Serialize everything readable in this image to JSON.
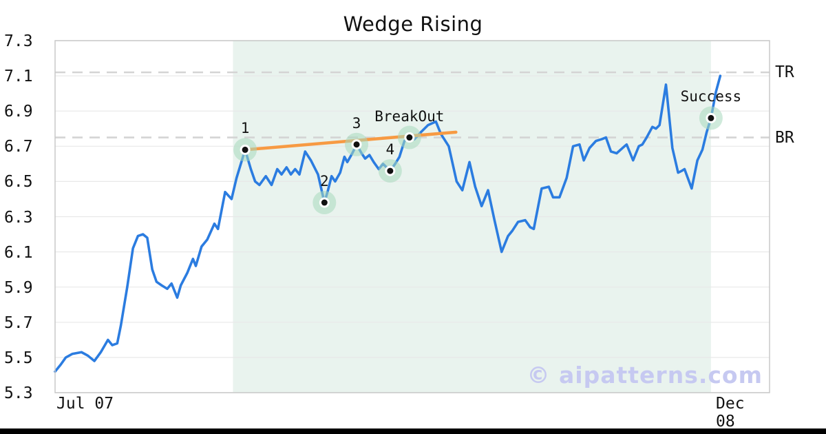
{
  "watermark": "© aipatterns.com",
  "colors": {
    "price_line": "#2b7ce0",
    "trend_line": "#f79a43",
    "pattern_zone": "#e9f3ee",
    "marker_halo": "#a8d8bd",
    "marker_dot": "#111111",
    "dashed_level": "#d4d4d4",
    "grid_line": "#e8e8e8",
    "frame": "#c8c8c8",
    "watermark_color": "#c6c9f1",
    "bottom_bar": "#000000"
  },
  "chart_data": {
    "type": "line",
    "title": "Wedge Rising",
    "x_tick_labels": [
      "Jul 07",
      "Dec 08"
    ],
    "ylim": [
      5.3,
      7.3
    ],
    "y_ticks": [
      7.3,
      7.1,
      6.9,
      6.7,
      6.5,
      6.3,
      6.1,
      5.9,
      5.7,
      5.5,
      5.3
    ],
    "grid": "horizontal",
    "legend": "none",
    "levels": [
      {
        "label": "TR",
        "value": 7.12
      },
      {
        "label": "BR",
        "value": 6.75
      }
    ],
    "pattern_zone": {
      "x_start": 0.249,
      "x_end": 0.918
    },
    "trendline": {
      "x1": 0.266,
      "y1": 6.68,
      "x2": 0.561,
      "y2": 6.78
    },
    "annotations": [
      {
        "label": "1",
        "x": 0.266,
        "y": 6.68
      },
      {
        "label": "2",
        "x": 0.377,
        "y": 6.38
      },
      {
        "label": "3",
        "x": 0.422,
        "y": 6.71
      },
      {
        "label": "4",
        "x": 0.469,
        "y": 6.56
      },
      {
        "label": "BreakOut",
        "x": 0.496,
        "y": 6.75
      },
      {
        "label": "Success",
        "x": 0.918,
        "y": 6.86
      }
    ],
    "series": [
      {
        "name": "price",
        "points": [
          [
            0.0,
            5.42
          ],
          [
            0.008,
            5.46
          ],
          [
            0.015,
            5.5
          ],
          [
            0.024,
            5.52
          ],
          [
            0.037,
            5.53
          ],
          [
            0.046,
            5.51
          ],
          [
            0.055,
            5.48
          ],
          [
            0.064,
            5.53
          ],
          [
            0.074,
            5.6
          ],
          [
            0.08,
            5.57
          ],
          [
            0.087,
            5.58
          ],
          [
            0.092,
            5.68
          ],
          [
            0.101,
            5.9
          ],
          [
            0.109,
            6.12
          ],
          [
            0.116,
            6.19
          ],
          [
            0.123,
            6.2
          ],
          [
            0.129,
            6.18
          ],
          [
            0.136,
            6.0
          ],
          [
            0.142,
            5.93
          ],
          [
            0.149,
            5.91
          ],
          [
            0.157,
            5.89
          ],
          [
            0.163,
            5.92
          ],
          [
            0.171,
            5.84
          ],
          [
            0.176,
            5.91
          ],
          [
            0.185,
            5.98
          ],
          [
            0.193,
            6.06
          ],
          [
            0.197,
            6.02
          ],
          [
            0.205,
            6.13
          ],
          [
            0.213,
            6.17
          ],
          [
            0.223,
            6.26
          ],
          [
            0.228,
            6.23
          ],
          [
            0.238,
            6.44
          ],
          [
            0.247,
            6.4
          ],
          [
            0.254,
            6.52
          ],
          [
            0.266,
            6.68
          ],
          [
            0.274,
            6.57
          ],
          [
            0.28,
            6.5
          ],
          [
            0.286,
            6.48
          ],
          [
            0.295,
            6.53
          ],
          [
            0.303,
            6.48
          ],
          [
            0.311,
            6.57
          ],
          [
            0.317,
            6.54
          ],
          [
            0.324,
            6.58
          ],
          [
            0.33,
            6.54
          ],
          [
            0.336,
            6.57
          ],
          [
            0.342,
            6.54
          ],
          [
            0.35,
            6.67
          ],
          [
            0.358,
            6.62
          ],
          [
            0.368,
            6.54
          ],
          [
            0.377,
            6.38
          ],
          [
            0.382,
            6.45
          ],
          [
            0.387,
            6.53
          ],
          [
            0.392,
            6.5
          ],
          [
            0.399,
            6.55
          ],
          [
            0.405,
            6.64
          ],
          [
            0.409,
            6.61
          ],
          [
            0.416,
            6.66
          ],
          [
            0.422,
            6.71
          ],
          [
            0.429,
            6.66
          ],
          [
            0.434,
            6.63
          ],
          [
            0.44,
            6.65
          ],
          [
            0.446,
            6.61
          ],
          [
            0.453,
            6.57
          ],
          [
            0.459,
            6.6
          ],
          [
            0.469,
            6.56
          ],
          [
            0.476,
            6.6
          ],
          [
            0.482,
            6.64
          ],
          [
            0.489,
            6.73
          ],
          [
            0.496,
            6.75
          ],
          [
            0.503,
            6.74
          ],
          [
            0.512,
            6.78
          ],
          [
            0.522,
            6.82
          ],
          [
            0.533,
            6.84
          ],
          [
            0.54,
            6.77
          ],
          [
            0.551,
            6.7
          ],
          [
            0.562,
            6.5
          ],
          [
            0.57,
            6.45
          ],
          [
            0.58,
            6.61
          ],
          [
            0.588,
            6.47
          ],
          [
            0.597,
            6.36
          ],
          [
            0.606,
            6.45
          ],
          [
            0.615,
            6.28
          ],
          [
            0.625,
            6.1
          ],
          [
            0.634,
            6.19
          ],
          [
            0.64,
            6.22
          ],
          [
            0.648,
            6.27
          ],
          [
            0.658,
            6.28
          ],
          [
            0.665,
            6.24
          ],
          [
            0.67,
            6.23
          ],
          [
            0.681,
            6.46
          ],
          [
            0.691,
            6.47
          ],
          [
            0.697,
            6.41
          ],
          [
            0.706,
            6.41
          ],
          [
            0.716,
            6.52
          ],
          [
            0.725,
            6.7
          ],
          [
            0.734,
            6.71
          ],
          [
            0.74,
            6.62
          ],
          [
            0.748,
            6.69
          ],
          [
            0.757,
            6.73
          ],
          [
            0.765,
            6.74
          ],
          [
            0.771,
            6.75
          ],
          [
            0.778,
            6.67
          ],
          [
            0.786,
            6.66
          ],
          [
            0.797,
            6.7
          ],
          [
            0.8,
            6.71
          ],
          [
            0.809,
            6.62
          ],
          [
            0.817,
            6.7
          ],
          [
            0.822,
            6.71
          ],
          [
            0.828,
            6.75
          ],
          [
            0.836,
            6.81
          ],
          [
            0.841,
            6.8
          ],
          [
            0.846,
            6.82
          ],
          [
            0.855,
            7.05
          ],
          [
            0.864,
            6.69
          ],
          [
            0.872,
            6.55
          ],
          [
            0.877,
            6.56
          ],
          [
            0.881,
            6.57
          ],
          [
            0.891,
            6.46
          ],
          [
            0.899,
            6.62
          ],
          [
            0.906,
            6.68
          ],
          [
            0.912,
            6.78
          ],
          [
            0.918,
            6.86
          ],
          [
            0.925,
            7.01
          ],
          [
            0.931,
            7.1
          ]
        ]
      }
    ]
  }
}
